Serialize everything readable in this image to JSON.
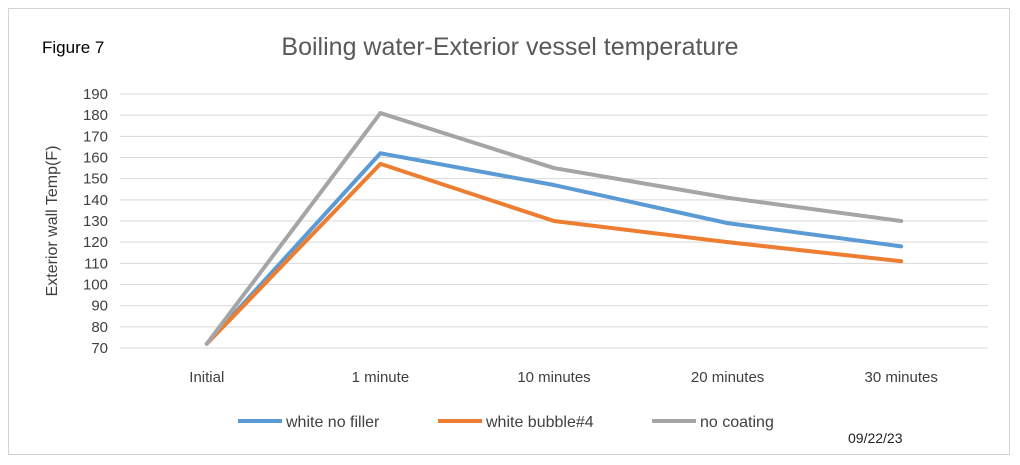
{
  "figure_label": "Figure 7",
  "date": "09/22/23",
  "chart_data": {
    "type": "line",
    "title": "Boiling water-Exterior vessel temperature",
    "xlabel": "",
    "ylabel": "Exterior wall Temp(F)",
    "categories": [
      "Initial",
      "1 minute",
      "10 minutes",
      "20 minutes",
      "30 minutes"
    ],
    "ylim": [
      70,
      190
    ],
    "yticks": [
      70,
      80,
      90,
      100,
      110,
      120,
      130,
      140,
      150,
      160,
      170,
      180,
      190
    ],
    "grid": true,
    "legend_position": "bottom",
    "series": [
      {
        "name": "white no filler",
        "color": "#5b9bd5",
        "values": [
          72,
          162,
          147,
          129,
          118
        ]
      },
      {
        "name": "white bubble#4",
        "color": "#ed7d31",
        "values": [
          72,
          157,
          130,
          120,
          111
        ]
      },
      {
        "name": "no coating",
        "color": "#a5a5a5",
        "values": [
          72,
          181,
          155,
          141,
          130
        ]
      }
    ]
  }
}
